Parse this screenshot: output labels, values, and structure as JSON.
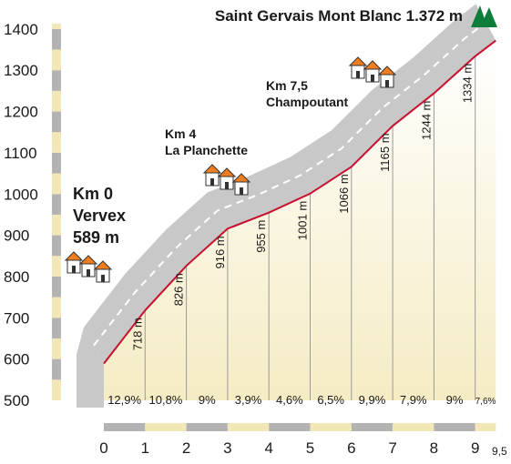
{
  "chart_data": {
    "type": "area",
    "title": "Saint Gervais Mont Blanc 1.372 m",
    "xlabel": "",
    "ylabel": "",
    "xlim": [
      0,
      9.5
    ],
    "ylim": [
      500,
      1400
    ],
    "x_ticks": [
      "0",
      "1",
      "2",
      "3",
      "4",
      "5",
      "6",
      "7",
      "8",
      "9",
      "9,5"
    ],
    "y_ticks": [
      "500",
      "600",
      "700",
      "800",
      "900",
      "1000",
      "1100",
      "1200",
      "1300",
      "1400"
    ],
    "x": [
      0,
      1,
      2,
      3,
      4,
      5,
      6,
      7,
      8,
      9,
      9.5
    ],
    "y": [
      589,
      718,
      826,
      916,
      955,
      1001,
      1066,
      1165,
      1244,
      1334,
      1372
    ],
    "elevation_labels": [
      {
        "x": 1,
        "label": "718 m"
      },
      {
        "x": 2,
        "label": "826 m"
      },
      {
        "x": 3,
        "label": "916 m"
      },
      {
        "x": 4,
        "label": "955 m"
      },
      {
        "x": 5,
        "label": "1001 m"
      },
      {
        "x": 6,
        "label": "1066 m"
      },
      {
        "x": 7,
        "label": "1165 m"
      },
      {
        "x": 8,
        "label": "1244 m"
      },
      {
        "x": 9,
        "label": "1334 m"
      }
    ],
    "gradients": [
      "12,9%",
      "10,8%",
      "9%",
      "3,9%",
      "4,6%",
      "6,5%",
      "9,9%",
      "7,9%",
      "9%",
      "7,6%"
    ],
    "annotations": [
      {
        "x": 0,
        "lines": [
          "Km 0",
          "Vervex",
          "589 m"
        ]
      },
      {
        "x": 4,
        "lines": [
          "Km 4",
          "La Planchette"
        ]
      },
      {
        "x": 7.5,
        "lines": [
          "Km 7,5",
          "Champoutant"
        ]
      }
    ],
    "colors": {
      "profile_line": "#c8102e",
      "road": "#c8c8c8",
      "fill_top": "#ffffff",
      "fill_bottom": "#f5ecc4",
      "band_grey": "#b3b3b3",
      "band_tan": "#f2e7b6",
      "house_roof": "#f07e20",
      "mountain": "#0e7d3a"
    }
  }
}
